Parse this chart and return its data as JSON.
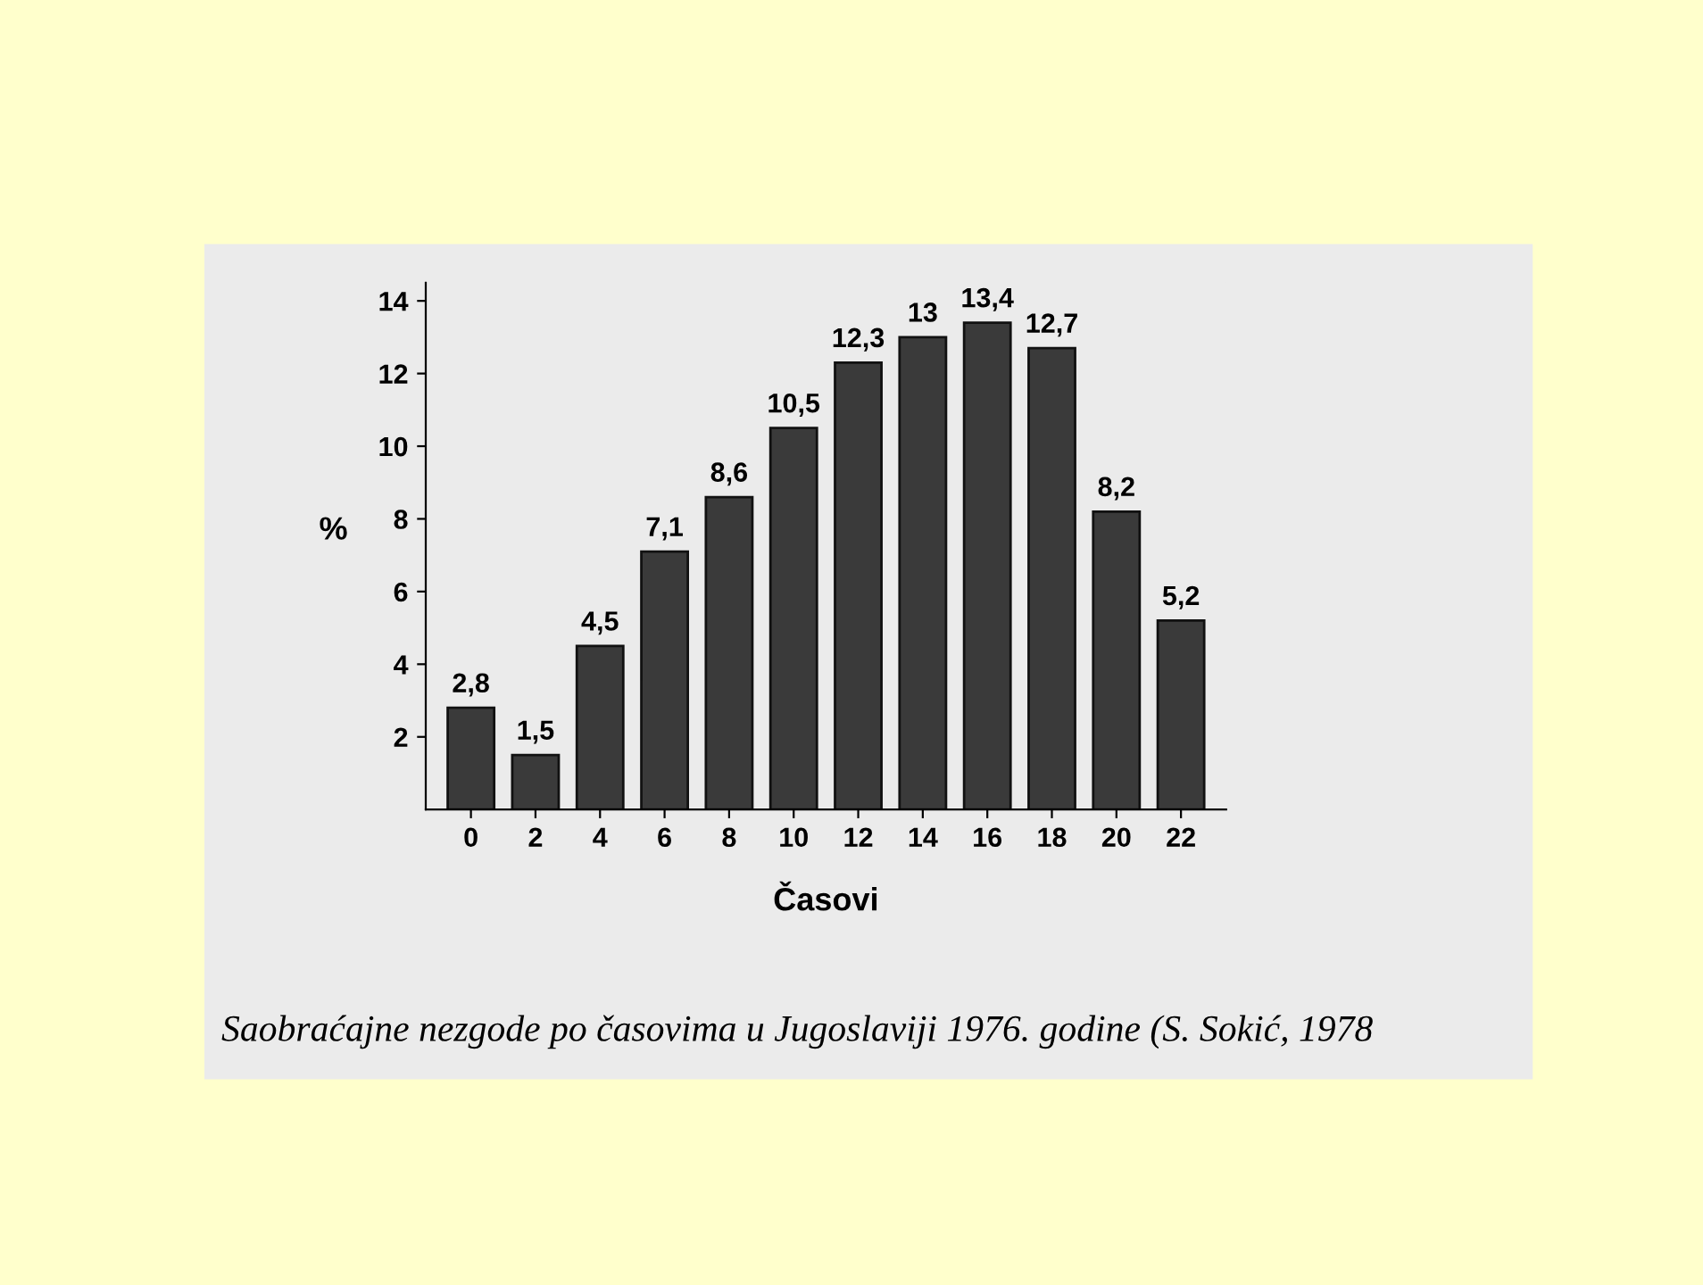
{
  "chart_data": {
    "type": "bar",
    "xlabel": "Časovi",
    "ylabel": "%",
    "categories": [
      "0",
      "2",
      "4",
      "6",
      "8",
      "10",
      "12",
      "14",
      "16",
      "18",
      "20",
      "22"
    ],
    "values": [
      2.8,
      1.5,
      4.5,
      7.1,
      8.6,
      10.5,
      12.3,
      13,
      13.4,
      12.7,
      8.2,
      5.2
    ],
    "value_labels": [
      "2,8",
      "1,5",
      "4,5",
      "7,1",
      "8,6",
      "10,5",
      "12,3",
      "13",
      "13,4",
      "12,7",
      "8,2",
      "5,2"
    ],
    "color": "#3a3a3a",
    "ylim": [
      0,
      14.5
    ],
    "yticks": [
      2,
      4,
      6,
      8,
      10,
      12,
      14
    ],
    "grid": false,
    "annotations": [
      "Saobraćajne nezgode po časovima u Jugoslaviji 1976. godine (S. Sokić, 1978"
    ]
  }
}
